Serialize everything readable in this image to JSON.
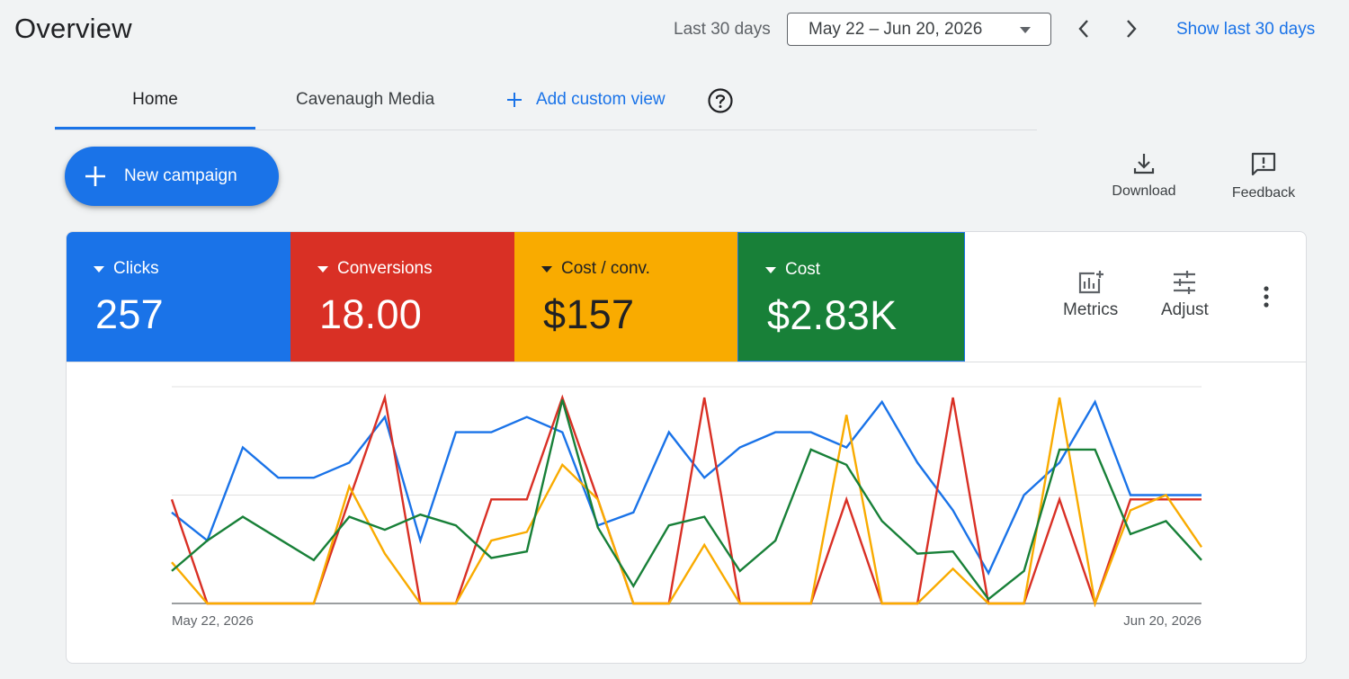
{
  "header": {
    "title": "Overview",
    "range_label": "Last 30 days",
    "date_range": "May 22 – Jun 20, 2026",
    "show_last_label": "Show last 30 days"
  },
  "tabs": [
    {
      "label": "Home",
      "active": true
    },
    {
      "label": "Cavenaugh Media",
      "active": false
    },
    {
      "label": "Add custom view",
      "active": false
    }
  ],
  "actions": {
    "new_campaign": "New campaign",
    "download": "Download",
    "feedback": "Feedback"
  },
  "metrics": [
    {
      "label": "Clicks",
      "value": "257",
      "color": "#1a73e8"
    },
    {
      "label": "Conversions",
      "value": "18.00",
      "color": "#d93025"
    },
    {
      "label": "Cost / conv.",
      "value": "$157",
      "color": "#f9ab00"
    },
    {
      "label": "Cost",
      "value": "$2.83K",
      "color": "#188038"
    }
  ],
  "card_tools": {
    "metrics": "Metrics",
    "adjust": "Adjust"
  },
  "chart_data": {
    "type": "line",
    "x_start_label": "May 22, 2026",
    "x_end_label": "Jun 20, 2026",
    "y_normalized": [
      0,
      1
    ],
    "grid": "horizontal",
    "series": [
      {
        "color": "#1a73e8",
        "values": [
          0.42,
          0.29,
          0.72,
          0.58,
          0.58,
          0.65,
          0.86,
          0.29,
          0.79,
          0.79,
          0.86,
          0.79,
          0.36,
          0.42,
          0.79,
          0.58,
          0.72,
          0.79,
          0.79,
          0.72,
          0.93,
          0.65,
          0.43,
          0.14,
          0.5,
          0.65,
          0.93,
          0.5,
          0.5,
          0.5
        ]
      },
      {
        "color": "#d93025",
        "values": [
          0.48,
          0.0,
          0.0,
          0.0,
          0.0,
          0.48,
          0.95,
          0.0,
          0.0,
          0.48,
          0.48,
          0.95,
          0.48,
          0.0,
          0.0,
          0.95,
          0.0,
          0.0,
          0.0,
          0.48,
          0.0,
          0.0,
          0.95,
          0.0,
          0.0,
          0.48,
          0.0,
          0.48,
          0.48,
          0.48
        ]
      },
      {
        "color": "#f9ab00",
        "values": [
          0.19,
          0.0,
          0.0,
          0.0,
          0.0,
          0.54,
          0.23,
          0.0,
          0.0,
          0.29,
          0.33,
          0.64,
          0.48,
          0.0,
          0.0,
          0.27,
          0.0,
          0.0,
          0.0,
          0.87,
          0.0,
          0.0,
          0.16,
          0.0,
          0.0,
          0.95,
          0.0,
          0.43,
          0.5,
          0.26
        ]
      },
      {
        "color": "#188038",
        "values": [
          0.15,
          0.29,
          0.4,
          0.3,
          0.2,
          0.4,
          0.34,
          0.41,
          0.36,
          0.21,
          0.24,
          0.94,
          0.35,
          0.08,
          0.36,
          0.4,
          0.15,
          0.29,
          0.71,
          0.64,
          0.38,
          0.23,
          0.24,
          0.02,
          0.15,
          0.71,
          0.71,
          0.32,
          0.38,
          0.2
        ]
      }
    ]
  }
}
